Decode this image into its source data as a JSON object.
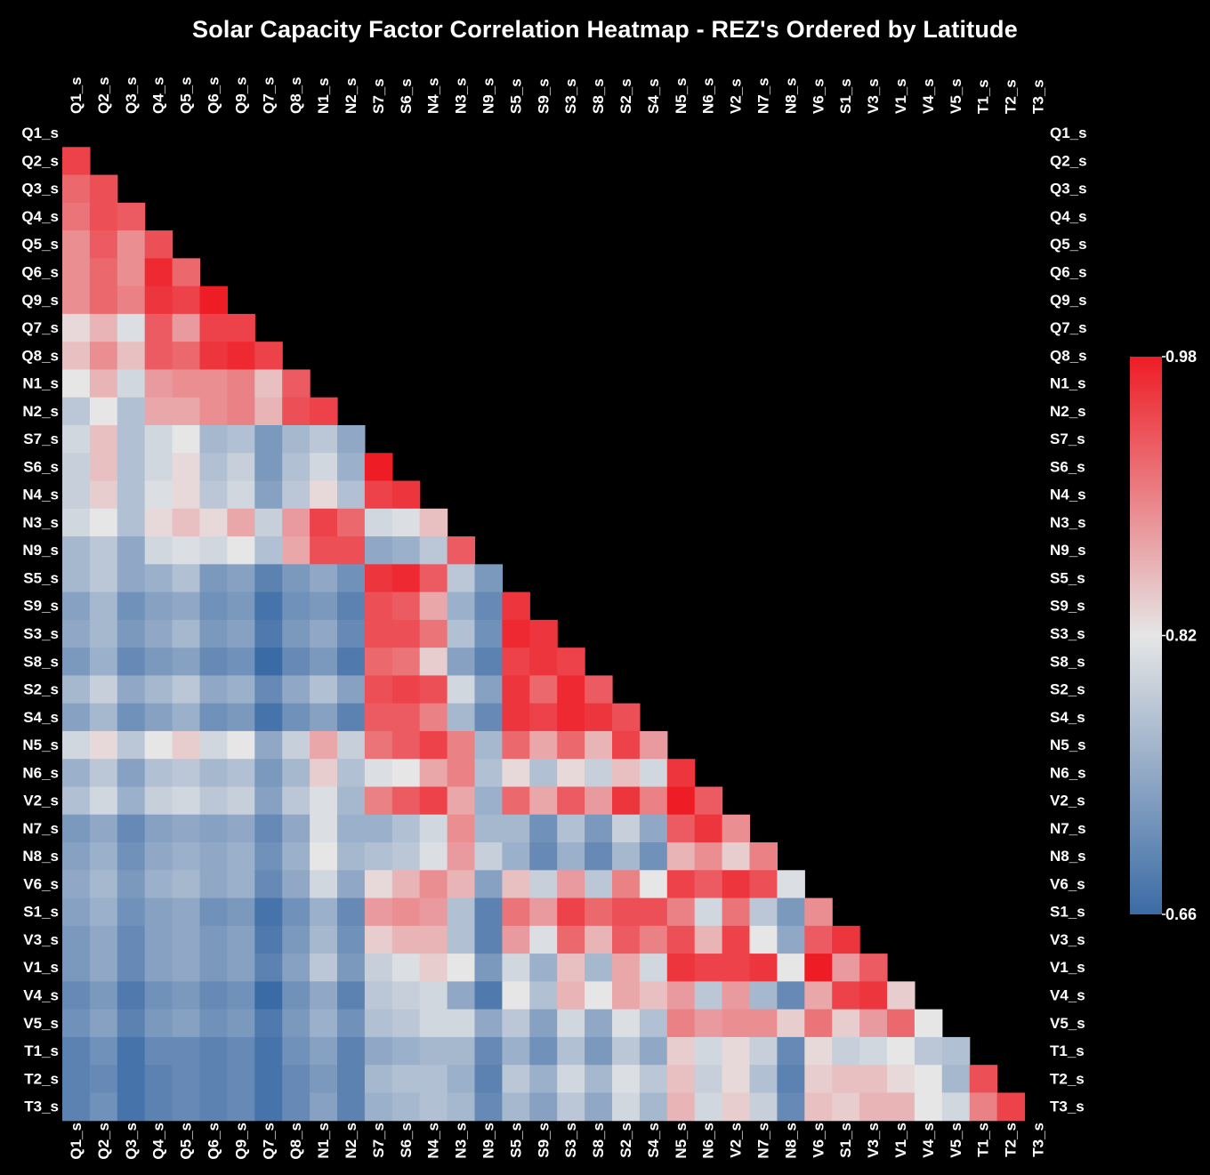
{
  "chart_data": {
    "type": "heatmap",
    "title": "Solar Capacity Factor Correlation Heatmap - REZ's Ordered by Latitude",
    "xlabel": "",
    "ylabel": "",
    "labels": [
      "Q1_s",
      "Q2_s",
      "Q3_s",
      "Q4_s",
      "Q5_s",
      "Q6_s",
      "Q9_s",
      "Q7_s",
      "Q8_s",
      "N1_s",
      "N2_s",
      "S7_s",
      "S6_s",
      "N4_s",
      "N3_s",
      "N9_s",
      "S5_s",
      "S9_s",
      "S3_s",
      "S8_s",
      "S2_s",
      "S4_s",
      "N5_s",
      "N6_s",
      "V2_s",
      "N7_s",
      "N8_s",
      "V6_s",
      "S1_s",
      "V3_s",
      "V1_s",
      "V4_s",
      "V5_s",
      "T1_s",
      "T2_s",
      "T3_s"
    ],
    "mask": "upper triangle including diagonal hidden",
    "matrix": [
      [],
      [
        0.95
      ],
      [
        0.92,
        0.94
      ],
      [
        0.91,
        0.94,
        0.93
      ],
      [
        0.89,
        0.93,
        0.89,
        0.94
      ],
      [
        0.89,
        0.92,
        0.89,
        0.97,
        0.92
      ],
      [
        0.89,
        0.92,
        0.9,
        0.96,
        0.95,
        0.98
      ],
      [
        0.83,
        0.86,
        0.81,
        0.93,
        0.88,
        0.95,
        0.95
      ],
      [
        0.85,
        0.89,
        0.85,
        0.93,
        0.92,
        0.96,
        0.97,
        0.95
      ],
      [
        0.82,
        0.86,
        0.8,
        0.88,
        0.89,
        0.89,
        0.9,
        0.85,
        0.93
      ],
      [
        0.78,
        0.82,
        0.77,
        0.87,
        0.87,
        0.89,
        0.9,
        0.86,
        0.94,
        0.95
      ],
      [
        0.8,
        0.85,
        0.77,
        0.8,
        0.82,
        0.76,
        0.77,
        0.72,
        0.76,
        0.78,
        0.74
      ],
      [
        0.79,
        0.85,
        0.77,
        0.8,
        0.83,
        0.77,
        0.79,
        0.72,
        0.77,
        0.8,
        0.75,
        0.98
      ],
      [
        0.79,
        0.84,
        0.77,
        0.81,
        0.83,
        0.78,
        0.8,
        0.73,
        0.78,
        0.83,
        0.77,
        0.95,
        0.96
      ],
      [
        0.8,
        0.82,
        0.77,
        0.83,
        0.85,
        0.83,
        0.87,
        0.79,
        0.88,
        0.95,
        0.92,
        0.8,
        0.81,
        0.85
      ],
      [
        0.76,
        0.78,
        0.74,
        0.8,
        0.81,
        0.8,
        0.82,
        0.77,
        0.87,
        0.94,
        0.94,
        0.74,
        0.75,
        0.78,
        0.93
      ],
      [
        0.76,
        0.78,
        0.74,
        0.75,
        0.77,
        0.72,
        0.73,
        0.69,
        0.72,
        0.74,
        0.71,
        0.96,
        0.97,
        0.93,
        0.78,
        0.72
      ],
      [
        0.73,
        0.76,
        0.71,
        0.73,
        0.74,
        0.71,
        0.72,
        0.67,
        0.71,
        0.72,
        0.69,
        0.94,
        0.93,
        0.87,
        0.75,
        0.7,
        0.96
      ],
      [
        0.74,
        0.76,
        0.72,
        0.74,
        0.76,
        0.72,
        0.73,
        0.68,
        0.72,
        0.74,
        0.7,
        0.94,
        0.94,
        0.91,
        0.77,
        0.71,
        0.97,
        0.96
      ],
      [
        0.72,
        0.75,
        0.7,
        0.72,
        0.73,
        0.7,
        0.71,
        0.66,
        0.7,
        0.72,
        0.68,
        0.92,
        0.91,
        0.84,
        0.73,
        0.69,
        0.95,
        0.96,
        0.95
      ],
      [
        0.76,
        0.79,
        0.74,
        0.76,
        0.78,
        0.74,
        0.75,
        0.7,
        0.74,
        0.77,
        0.73,
        0.94,
        0.95,
        0.94,
        0.8,
        0.73,
        0.96,
        0.92,
        0.97,
        0.93
      ],
      [
        0.73,
        0.76,
        0.71,
        0.73,
        0.75,
        0.71,
        0.72,
        0.67,
        0.71,
        0.73,
        0.69,
        0.93,
        0.93,
        0.9,
        0.76,
        0.7,
        0.96,
        0.95,
        0.97,
        0.96,
        0.94
      ],
      [
        0.8,
        0.83,
        0.78,
        0.82,
        0.84,
        0.8,
        0.82,
        0.74,
        0.79,
        0.87,
        0.79,
        0.91,
        0.93,
        0.95,
        0.9,
        0.76,
        0.92,
        0.87,
        0.92,
        0.86,
        0.95,
        0.88
      ],
      [
        0.75,
        0.78,
        0.73,
        0.77,
        0.78,
        0.76,
        0.77,
        0.72,
        0.76,
        0.84,
        0.77,
        0.81,
        0.82,
        0.87,
        0.9,
        0.77,
        0.83,
        0.77,
        0.83,
        0.79,
        0.85,
        0.8,
        0.96
      ],
      [
        0.77,
        0.8,
        0.75,
        0.79,
        0.8,
        0.78,
        0.79,
        0.73,
        0.78,
        0.81,
        0.76,
        0.9,
        0.93,
        0.95,
        0.87,
        0.75,
        0.92,
        0.87,
        0.93,
        0.88,
        0.96,
        0.9,
        0.99,
        0.93
      ],
      [
        0.72,
        0.74,
        0.7,
        0.73,
        0.74,
        0.73,
        0.74,
        0.7,
        0.74,
        0.81,
        0.75,
        0.75,
        0.77,
        0.8,
        0.89,
        0.76,
        0.76,
        0.71,
        0.77,
        0.72,
        0.79,
        0.74,
        0.93,
        0.96,
        0.89
      ],
      [
        0.73,
        0.75,
        0.71,
        0.74,
        0.75,
        0.74,
        0.75,
        0.71,
        0.75,
        0.82,
        0.76,
        0.77,
        0.78,
        0.81,
        0.88,
        0.79,
        0.75,
        0.7,
        0.75,
        0.7,
        0.76,
        0.71,
        0.86,
        0.89,
        0.84,
        0.9
      ],
      [
        0.74,
        0.76,
        0.72,
        0.75,
        0.76,
        0.74,
        0.75,
        0.7,
        0.74,
        0.8,
        0.74,
        0.83,
        0.86,
        0.89,
        0.86,
        0.73,
        0.85,
        0.79,
        0.88,
        0.78,
        0.9,
        0.82,
        0.95,
        0.93,
        0.96,
        0.94,
        0.81
      ],
      [
        0.73,
        0.75,
        0.71,
        0.73,
        0.74,
        0.71,
        0.72,
        0.67,
        0.71,
        0.75,
        0.7,
        0.88,
        0.89,
        0.88,
        0.77,
        0.69,
        0.91,
        0.88,
        0.95,
        0.92,
        0.94,
        0.94,
        0.9,
        0.8,
        0.91,
        0.78,
        0.72,
        0.89
      ],
      [
        0.72,
        0.74,
        0.7,
        0.73,
        0.74,
        0.72,
        0.73,
        0.68,
        0.72,
        0.76,
        0.71,
        0.84,
        0.86,
        0.86,
        0.77,
        0.69,
        0.88,
        0.81,
        0.92,
        0.86,
        0.93,
        0.9,
        0.94,
        0.86,
        0.95,
        0.82,
        0.74,
        0.93,
        0.96
      ],
      [
        0.72,
        0.74,
        0.7,
        0.73,
        0.74,
        0.72,
        0.73,
        0.69,
        0.73,
        0.78,
        0.72,
        0.79,
        0.81,
        0.84,
        0.82,
        0.72,
        0.8,
        0.75,
        0.85,
        0.76,
        0.87,
        0.8,
        0.96,
        0.95,
        0.95,
        0.96,
        0.82,
        0.98,
        0.88,
        0.93
      ],
      [
        0.7,
        0.72,
        0.68,
        0.71,
        0.72,
        0.7,
        0.71,
        0.66,
        0.71,
        0.74,
        0.69,
        0.78,
        0.79,
        0.8,
        0.74,
        0.68,
        0.82,
        0.77,
        0.86,
        0.82,
        0.87,
        0.85,
        0.88,
        0.78,
        0.88,
        0.76,
        0.7,
        0.87,
        0.95,
        0.96,
        0.84
      ],
      [
        0.71,
        0.73,
        0.69,
        0.72,
        0.73,
        0.71,
        0.72,
        0.68,
        0.72,
        0.75,
        0.71,
        0.77,
        0.78,
        0.8,
        0.8,
        0.74,
        0.78,
        0.73,
        0.8,
        0.74,
        0.81,
        0.77,
        0.9,
        0.88,
        0.89,
        0.89,
        0.84,
        0.91,
        0.84,
        0.88,
        0.92,
        0.82
      ],
      [
        0.69,
        0.71,
        0.67,
        0.7,
        0.7,
        0.69,
        0.7,
        0.67,
        0.71,
        0.73,
        0.69,
        0.74,
        0.75,
        0.76,
        0.76,
        0.7,
        0.75,
        0.71,
        0.77,
        0.72,
        0.78,
        0.74,
        0.84,
        0.8,
        0.83,
        0.79,
        0.7,
        0.83,
        0.79,
        0.8,
        0.82,
        0.78,
        0.77
      ],
      [
        0.69,
        0.7,
        0.67,
        0.69,
        0.7,
        0.69,
        0.7,
        0.67,
        0.7,
        0.72,
        0.69,
        0.76,
        0.77,
        0.77,
        0.75,
        0.69,
        0.78,
        0.75,
        0.8,
        0.76,
        0.81,
        0.78,
        0.85,
        0.79,
        0.83,
        0.77,
        0.69,
        0.84,
        0.85,
        0.85,
        0.83,
        0.82,
        0.76,
        0.94
      ],
      [
        0.69,
        0.71,
        0.67,
        0.69,
        0.7,
        0.69,
        0.7,
        0.67,
        0.7,
        0.73,
        0.69,
        0.75,
        0.76,
        0.77,
        0.76,
        0.7,
        0.76,
        0.73,
        0.78,
        0.74,
        0.8,
        0.76,
        0.86,
        0.8,
        0.84,
        0.79,
        0.7,
        0.85,
        0.84,
        0.86,
        0.86,
        0.82,
        0.8,
        0.9,
        0.95
      ]
    ],
    "colorbar": {
      "min": 0.66,
      "max": 0.98,
      "ticks": [
        "0.98",
        "0.82",
        "0.66"
      ]
    },
    "colors": {
      "low": "#3b6ba5",
      "mid": "#e6e6e6",
      "high": "#ee1c25",
      "background": "#000000"
    }
  }
}
